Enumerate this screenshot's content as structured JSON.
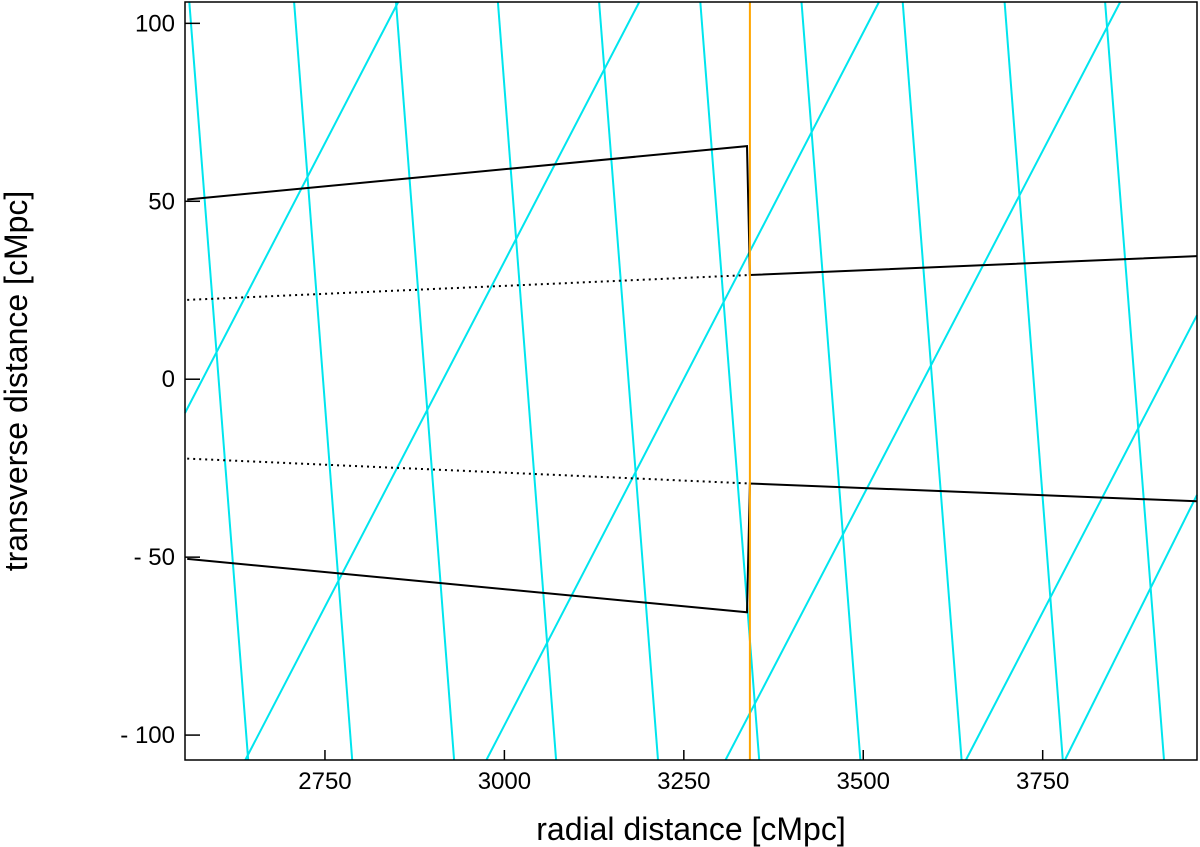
{
  "chart_data": {
    "type": "line",
    "xlabel": "radial distance [cMpc]",
    "ylabel": "transverse distance [cMpc]",
    "xlim": [
      2555,
      3965
    ],
    "ylim": [
      -107,
      106
    ],
    "xticks": [
      {
        "value": 2750,
        "label": "2750"
      },
      {
        "value": 3000,
        "label": "3000"
      },
      {
        "value": 3250,
        "label": "3250"
      },
      {
        "value": 3500,
        "label": "3500"
      },
      {
        "value": 3750,
        "label": "3750"
      }
    ],
    "yticks": [
      {
        "value": 100,
        "label": "100"
      },
      {
        "value": 50,
        "label": "50"
      },
      {
        "value": 0,
        "label": "0"
      },
      {
        "value": -50,
        "label": "- 50"
      },
      {
        "value": -100,
        "label": "- 100"
      }
    ],
    "grid": false,
    "colors": {
      "black": "#000000",
      "cyan": "#00e5ee",
      "orange": "#ffa500"
    },
    "series": [
      {
        "style": "solid",
        "color": "black",
        "points": [
          [
            2558,
            50.5
          ],
          [
            3338,
            65.5
          ],
          [
            3342,
            29.3
          ],
          [
            3965,
            34.6
          ]
        ]
      },
      {
        "style": "solid",
        "color": "black",
        "points": [
          [
            2558,
            -50.5
          ],
          [
            3338,
            -65.5
          ],
          [
            3342,
            -29.3
          ],
          [
            3965,
            -34.3
          ]
        ]
      },
      {
        "style": "dotted",
        "color": "black",
        "points": [
          [
            2558,
            22.3
          ],
          [
            3342,
            29.3
          ]
        ]
      },
      {
        "style": "dotted",
        "color": "black",
        "points": [
          [
            2558,
            -22.3
          ],
          [
            3342,
            -29.3
          ]
        ]
      },
      {
        "style": "solid",
        "color": "orange",
        "points": [
          [
            3342,
            106
          ],
          [
            3342,
            -107
          ]
        ]
      },
      {
        "style": "solid",
        "color": "cyan",
        "points": [
          [
            2561,
            106
          ],
          [
            2643,
            -107
          ]
        ]
      },
      {
        "style": "solid",
        "color": "cyan",
        "points": [
          [
            2707,
            106
          ],
          [
            2788,
            -107
          ]
        ]
      },
      {
        "style": "solid",
        "color": "cyan",
        "points": [
          [
            2849,
            106
          ],
          [
            2930,
            -107
          ]
        ]
      },
      {
        "style": "solid",
        "color": "cyan",
        "points": [
          [
            2991,
            106
          ],
          [
            3072,
            -107
          ]
        ]
      },
      {
        "style": "solid",
        "color": "cyan",
        "points": [
          [
            3132,
            106
          ],
          [
            3214,
            -107
          ]
        ]
      },
      {
        "style": "solid",
        "color": "cyan",
        "points": [
          [
            3273,
            106
          ],
          [
            3355,
            -107
          ]
        ]
      },
      {
        "style": "solid",
        "color": "cyan",
        "points": [
          [
            3414,
            106
          ],
          [
            3496,
            -107
          ]
        ]
      },
      {
        "style": "solid",
        "color": "cyan",
        "points": [
          [
            3555,
            106
          ],
          [
            3637,
            -107
          ]
        ]
      },
      {
        "style": "solid",
        "color": "cyan",
        "points": [
          [
            3697,
            106
          ],
          [
            3778,
            -107
          ]
        ]
      },
      {
        "style": "solid",
        "color": "cyan",
        "points": [
          [
            3837,
            106
          ],
          [
            3919,
            -107
          ]
        ]
      },
      {
        "style": "solid",
        "color": "cyan",
        "points": [
          [
            2555,
            -9.5
          ],
          [
            2852,
            106
          ]
        ]
      },
      {
        "style": "solid",
        "color": "cyan",
        "points": [
          [
            2639,
            -107
          ],
          [
            3188,
            106
          ]
        ]
      },
      {
        "style": "solid",
        "color": "cyan",
        "points": [
          [
            2975,
            -107
          ],
          [
            3522,
            106
          ]
        ]
      },
      {
        "style": "solid",
        "color": "cyan",
        "points": [
          [
            3308,
            -107
          ],
          [
            3858,
            106
          ]
        ]
      },
      {
        "style": "solid",
        "color": "cyan",
        "points": [
          [
            3643,
            -107
          ],
          [
            3965,
            18
          ]
        ]
      },
      {
        "style": "solid",
        "color": "cyan",
        "points": [
          [
            3781,
            -107
          ],
          [
            3965,
            -32.5
          ]
        ]
      }
    ]
  }
}
